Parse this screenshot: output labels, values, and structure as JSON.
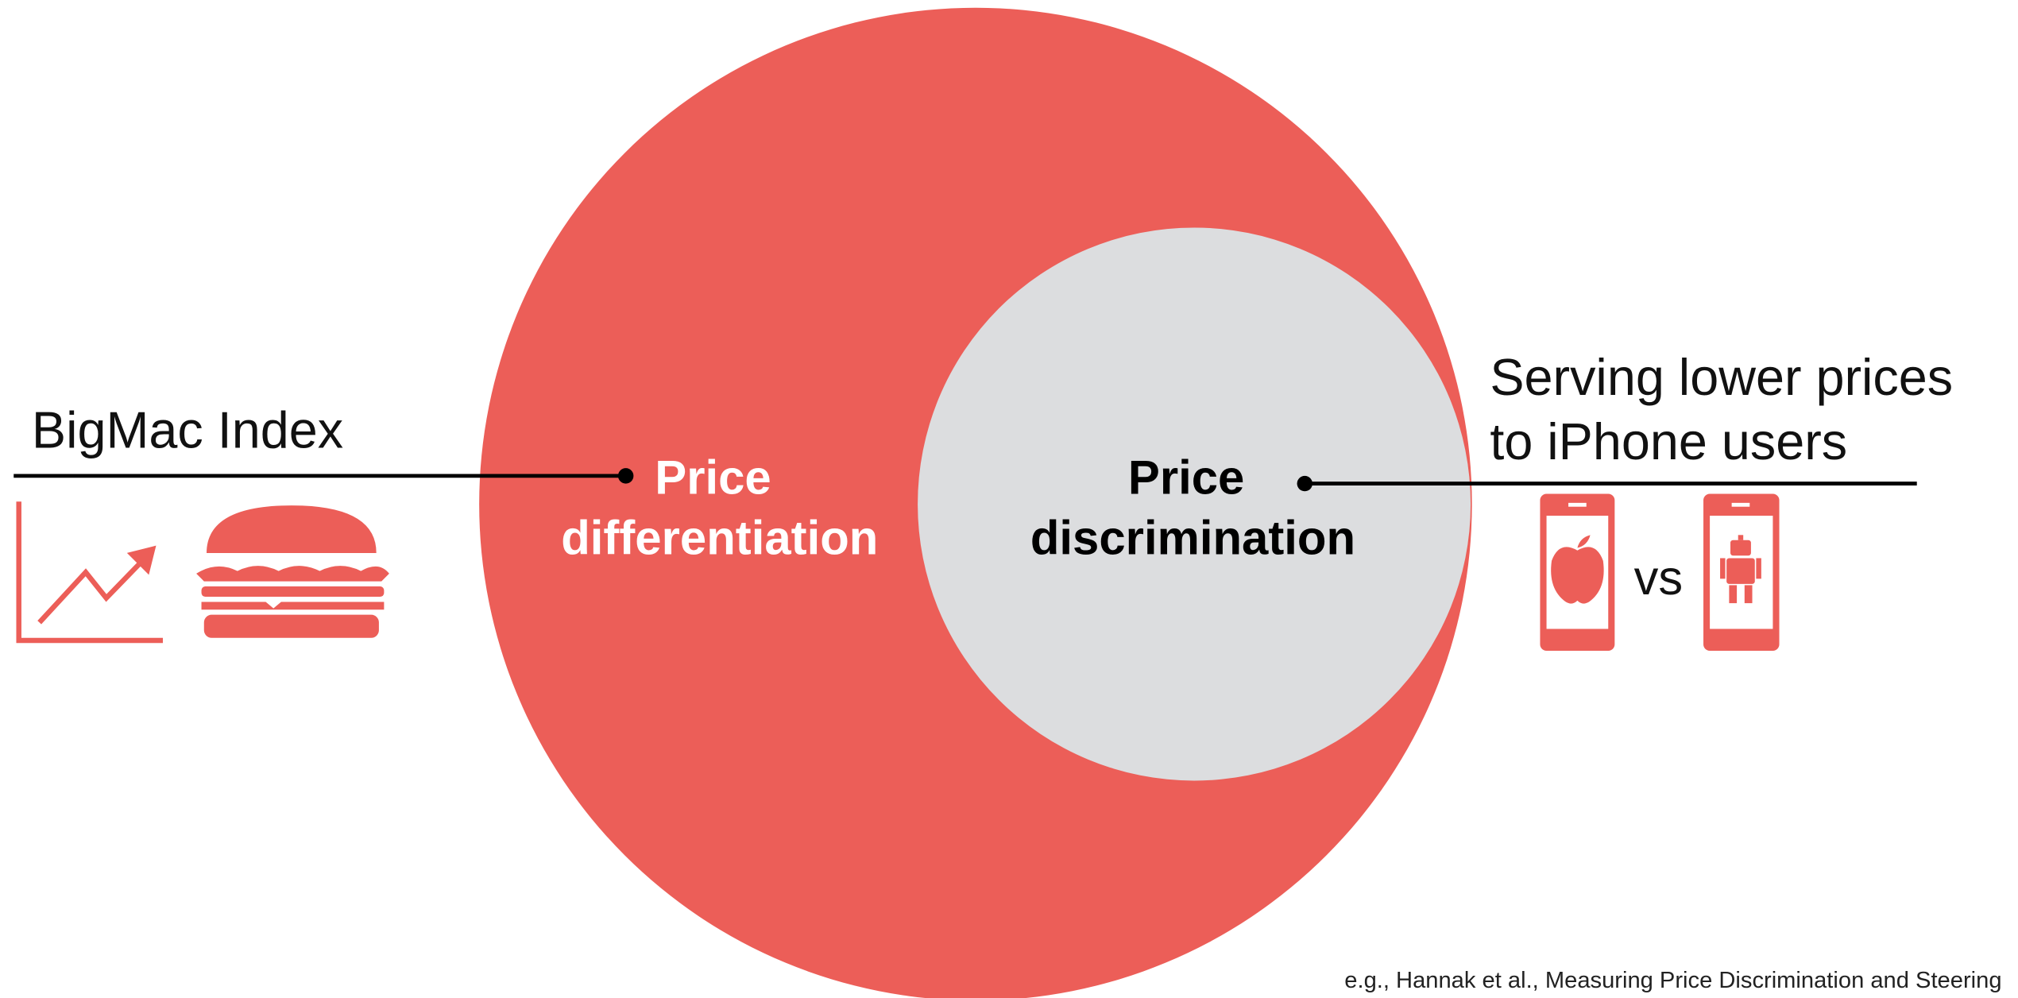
{
  "left_example": {
    "title": "BigMac Index"
  },
  "outer_circle": {
    "label": [
      "Price",
      "differentiation"
    ]
  },
  "inner_circle": {
    "label": [
      "Price",
      "discrimination"
    ]
  },
  "right_example": {
    "title": [
      "Serving lower prices",
      "to iPhone users"
    ],
    "separator": "vs"
  },
  "citation": "e.g., Hannak et al., Measuring Price Discrimination and Steering"
}
